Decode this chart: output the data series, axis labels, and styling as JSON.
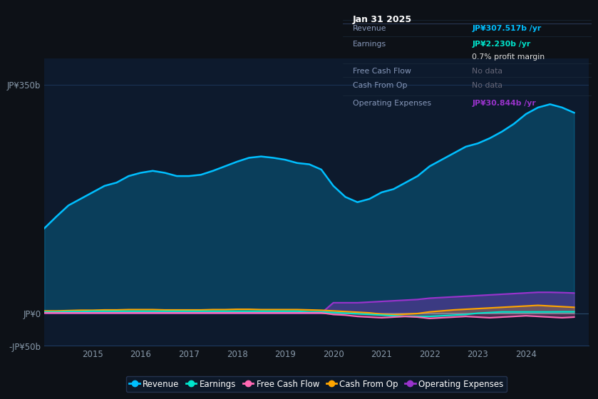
{
  "bg_color": "#0d1117",
  "plot_bg_color": "#0d1a2d",
  "grid_color": "#1e3a5f",
  "years": [
    2014.0,
    2014.25,
    2014.5,
    2014.75,
    2015.0,
    2015.25,
    2015.5,
    2015.75,
    2016.0,
    2016.25,
    2016.5,
    2016.75,
    2017.0,
    2017.25,
    2017.5,
    2017.75,
    2018.0,
    2018.25,
    2018.5,
    2018.75,
    2019.0,
    2019.25,
    2019.5,
    2019.75,
    2020.0,
    2020.25,
    2020.5,
    2020.75,
    2021.0,
    2021.25,
    2021.5,
    2021.75,
    2022.0,
    2022.25,
    2022.5,
    2022.75,
    2023.0,
    2023.25,
    2023.5,
    2023.75,
    2024.0,
    2024.25,
    2024.5,
    2024.75,
    2025.0
  ],
  "revenue": [
    130,
    148,
    165,
    175,
    185,
    195,
    200,
    210,
    215,
    218,
    215,
    210,
    210,
    212,
    218,
    225,
    232,
    238,
    240,
    238,
    235,
    230,
    228,
    220,
    195,
    178,
    170,
    175,
    185,
    190,
    200,
    210,
    225,
    235,
    245,
    255,
    260,
    268,
    278,
    290,
    305,
    315,
    320,
    315,
    307
  ],
  "earnings": [
    2.0,
    2.0,
    2.5,
    2.5,
    3.0,
    3.0,
    3.0,
    3.0,
    3.0,
    3.0,
    3.0,
    3.0,
    3.0,
    3.0,
    3.0,
    3.0,
    3.0,
    3.0,
    3.0,
    3.0,
    3.0,
    3.0,
    2.0,
    2.0,
    1.0,
    0.0,
    -1.0,
    -2.0,
    -3.0,
    -4.0,
    -5.0,
    -5.0,
    -5.0,
    -4.0,
    -3.0,
    -2.0,
    0.0,
    1.0,
    2.0,
    2.0,
    2.0,
    2.0,
    2.0,
    2.2,
    2.23
  ],
  "free_cash_flow": [
    0.5,
    0.5,
    0.5,
    0.5,
    0.5,
    0.5,
    0.5,
    0.5,
    0.5,
    0.5,
    0.5,
    0.5,
    0.5,
    0.5,
    0.5,
    0.5,
    0.5,
    0.5,
    0.5,
    0.5,
    0.5,
    0.5,
    0.5,
    0.5,
    -2.0,
    -3.0,
    -5.0,
    -6.0,
    -7.0,
    -6.0,
    -5.0,
    -6.0,
    -8.0,
    -7.0,
    -6.0,
    -5.0,
    -6.0,
    -7.0,
    -6.0,
    -5.0,
    -4.0,
    -5.0,
    -6.0,
    -7.0,
    -6.0
  ],
  "cash_from_op": [
    3.5,
    3.5,
    4.0,
    4.5,
    4.5,
    5.0,
    5.0,
    5.5,
    5.5,
    5.5,
    5.0,
    5.0,
    5.0,
    5.0,
    5.5,
    5.5,
    6.0,
    6.0,
    5.5,
    5.5,
    5.5,
    5.5,
    5.0,
    4.5,
    3.5,
    2.5,
    1.5,
    0.5,
    -1.5,
    -2.5,
    -1.5,
    -0.5,
    2.0,
    3.5,
    5.0,
    6.0,
    7.0,
    8.0,
    9.0,
    10.0,
    11.0,
    12.0,
    11.0,
    10.0,
    9.0
  ],
  "operating_expenses": [
    0.0,
    0.0,
    0.0,
    0.0,
    0.0,
    0.0,
    0.0,
    0.0,
    0.0,
    0.0,
    0.0,
    0.0,
    0.0,
    0.0,
    0.0,
    0.0,
    0.0,
    0.0,
    0.0,
    0.0,
    0.0,
    0.0,
    0.0,
    0.0,
    16.0,
    16.0,
    16.0,
    17.0,
    18.0,
    19.0,
    20.0,
    21.0,
    23.0,
    24.0,
    25.0,
    26.0,
    27.0,
    28.0,
    29.0,
    30.0,
    31.0,
    32.0,
    32.0,
    31.5,
    30.844
  ],
  "revenue_color": "#00bfff",
  "earnings_color": "#00e5cc",
  "fcf_color": "#ff69b4",
  "cashop_color": "#ffa500",
  "opex_color": "#9933cc",
  "xlabel_color": "#8899aa",
  "ylabel_color": "#aabbcc",
  "ylim": [
    -50,
    390
  ],
  "yticks": [
    -50,
    0,
    350
  ],
  "ytick_labels": [
    "-JP¥50b",
    "JP¥0",
    "JP¥350b"
  ],
  "xticks": [
    2015,
    2016,
    2017,
    2018,
    2019,
    2020,
    2021,
    2022,
    2023,
    2024
  ],
  "legend_labels": [
    "Revenue",
    "Earnings",
    "Free Cash Flow",
    "Cash From Op",
    "Operating Expenses"
  ],
  "legend_colors": [
    "#00bfff",
    "#00e5cc",
    "#ff69b4",
    "#ffa500",
    "#9933cc"
  ],
  "tooltip_date": "Jan 31 2025",
  "tooltip_rows": [
    {
      "label": "Revenue",
      "value": "JP¥307.517b /yr",
      "color": "#00bfff",
      "dimmed": false
    },
    {
      "label": "Earnings",
      "value": "JP¥2.230b /yr",
      "color": "#00e5cc",
      "dimmed": false
    },
    {
      "label": "",
      "value": "0.7% profit margin",
      "color": "#dddddd",
      "dimmed": false
    },
    {
      "label": "Free Cash Flow",
      "value": "No data",
      "color": "#666677",
      "dimmed": true
    },
    {
      "label": "Cash From Op",
      "value": "No data",
      "color": "#666677",
      "dimmed": true
    },
    {
      "label": "Operating Expenses",
      "value": "JP¥30.844b /yr",
      "color": "#9933cc",
      "dimmed": false
    }
  ]
}
